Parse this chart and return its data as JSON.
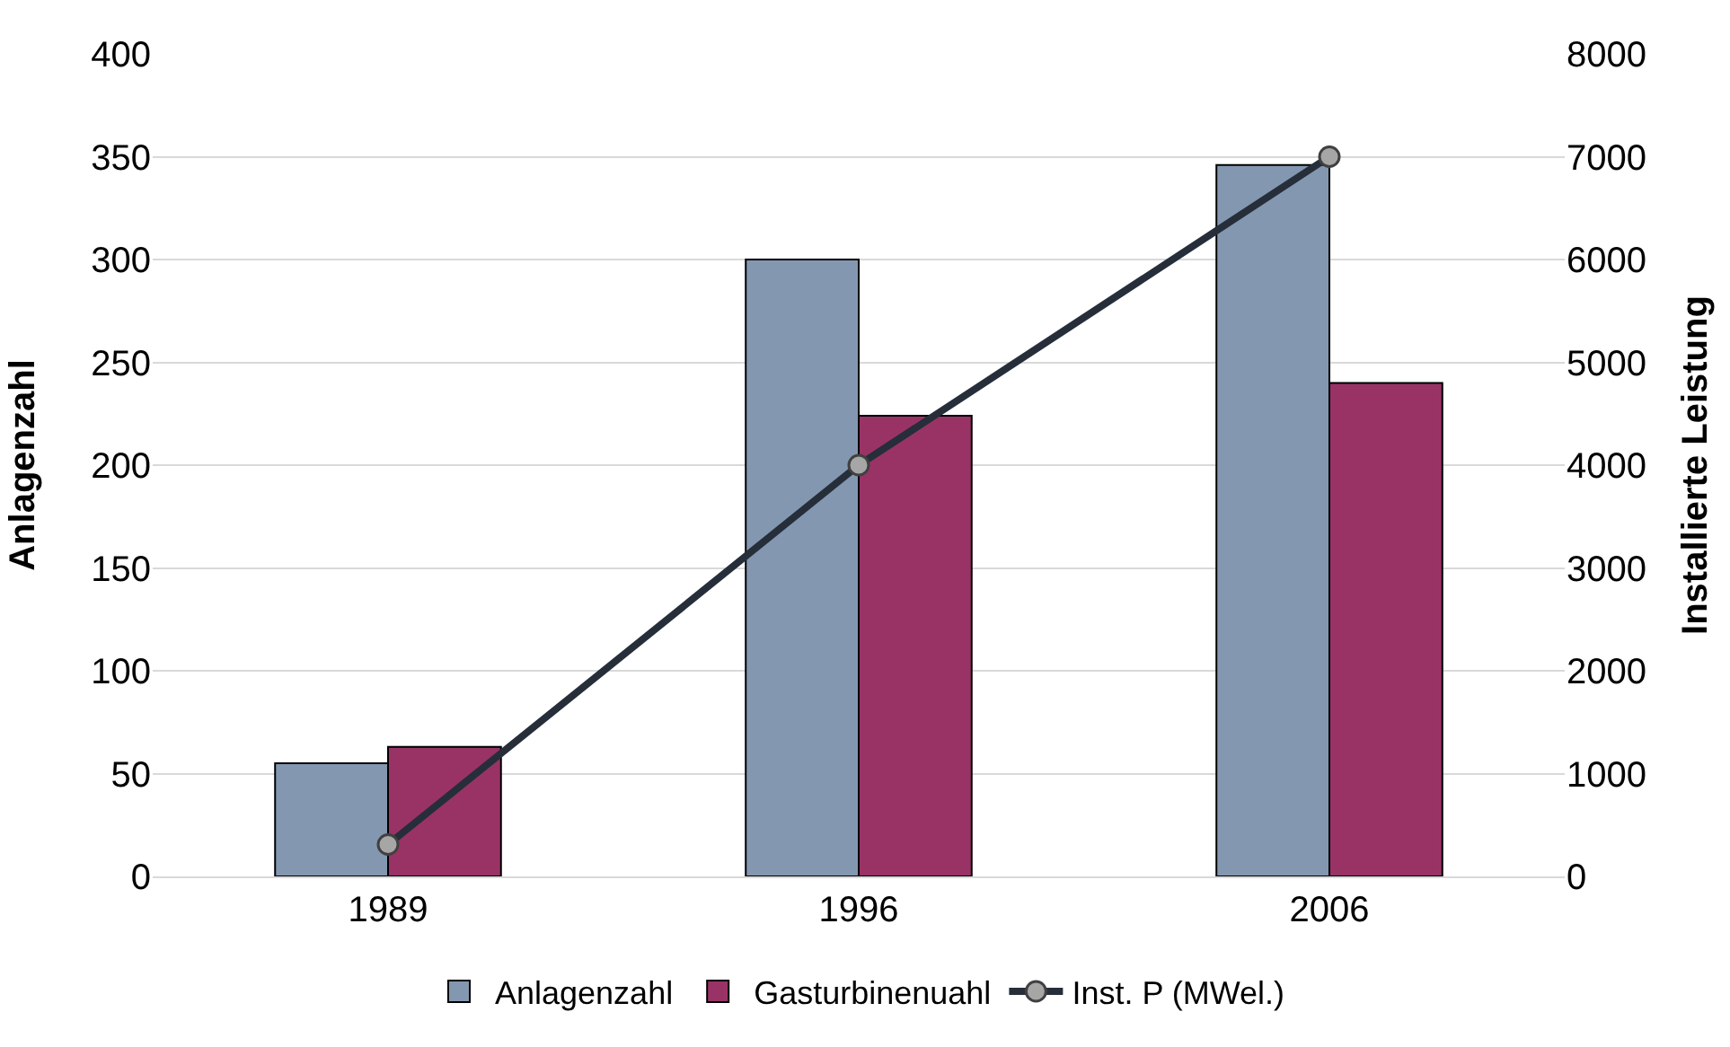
{
  "chart_data": {
    "type": "bar",
    "ylabel": "Anlagenzahl",
    "y2label": "Installierte Leistung",
    "categories": [
      "1989",
      "1996",
      "2006"
    ],
    "series": [
      {
        "name": "Anlagenzahl",
        "color": "#8497b0",
        "values": [
          55,
          300,
          346
        ]
      },
      {
        "name": "Gasturbinenuahl",
        "color": "#993366",
        "values": [
          63,
          224,
          240
        ]
      },
      {
        "name": "Inst. P (MWel.)",
        "type": "line",
        "axis": "y2",
        "color": "#262e3a",
        "values": [
          310,
          4000,
          7000
        ]
      }
    ],
    "ylim": [
      0,
      400
    ],
    "yticks": [
      0,
      50,
      100,
      150,
      200,
      250,
      300,
      350,
      400
    ],
    "y2lim": [
      0,
      8000
    ],
    "y2ticks": [
      0,
      1000,
      2000,
      3000,
      4000,
      5000,
      6000,
      7000,
      8000
    ],
    "grid": "y",
    "legend": "bottom",
    "marker": "circle",
    "line_style": "solid"
  }
}
